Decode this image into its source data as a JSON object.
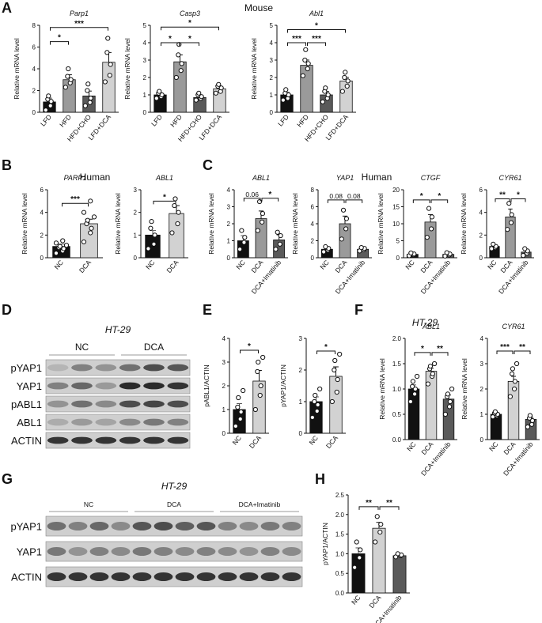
{
  "labels": {
    "mouse": "Mouse",
    "humanB": "Human",
    "humanC": "Human",
    "ht29": "HT-29"
  },
  "colors": {
    "black": "#111111",
    "dark": "#5a5a5a",
    "mid": "#9a9a9a",
    "light": "#d2d2d2"
  },
  "chart_data": [
    {
      "id": "A1",
      "type": "bar",
      "panel": "A",
      "title": "Parp1",
      "ylabel": "Relative mRNA level",
      "ylim": [
        0,
        8
      ],
      "yticks": [
        0,
        2,
        4,
        6,
        8
      ],
      "categories": [
        "LFD",
        "HFD",
        "HFD+CHO",
        "LFD+DCA"
      ],
      "values": [
        0.95,
        3.0,
        1.5,
        4.6
      ],
      "errors": [
        0.35,
        0.45,
        0.45,
        0.9
      ],
      "colors": [
        "#111111",
        "#9a9a9a",
        "#5a5a5a",
        "#d2d2d2"
      ],
      "points": [
        [
          0.2,
          0.6,
          1.0,
          1.2,
          1.5
        ],
        [
          2.3,
          2.7,
          3.0,
          3.3,
          4.0
        ],
        [
          0.6,
          0.9,
          1.3,
          2.0,
          2.6
        ],
        [
          2.8,
          3.4,
          4.4,
          5.5,
          6.8
        ]
      ],
      "sig": [
        {
          "a": 0,
          "b": 1,
          "y": 6.5,
          "label": "*"
        },
        {
          "a": 0,
          "b": 3,
          "y": 7.8,
          "label": "***"
        }
      ]
    },
    {
      "id": "A2",
      "type": "bar",
      "panel": "A",
      "title": "Casp3",
      "ylabel": "Relative mRNA level",
      "ylim": [
        0,
        5
      ],
      "yticks": [
        0,
        1,
        2,
        3,
        4,
        5
      ],
      "categories": [
        "LFD",
        "HFD",
        "HFD+CHO",
        "LFD+DCA"
      ],
      "values": [
        1.0,
        2.9,
        0.85,
        1.35
      ],
      "errors": [
        0.1,
        0.4,
        0.1,
        0.12
      ],
      "colors": [
        "#111111",
        "#9a9a9a",
        "#5a5a5a",
        "#d2d2d2"
      ],
      "points": [
        [
          0.8,
          0.9,
          1.0,
          1.1,
          1.2
        ],
        [
          2.0,
          2.4,
          2.8,
          3.3,
          3.9
        ],
        [
          0.7,
          0.8,
          0.9,
          1.0,
          1.1
        ],
        [
          1.1,
          1.2,
          1.4,
          1.5,
          1.6
        ]
      ],
      "sig": [
        {
          "a": 0,
          "b": 1,
          "y": 4.0,
          "label": "*"
        },
        {
          "a": 1,
          "b": 2,
          "y": 4.0,
          "label": "*"
        },
        {
          "a": 0,
          "b": 3,
          "y": 4.9,
          "label": "*"
        }
      ]
    },
    {
      "id": "A3",
      "type": "bar",
      "panel": "A",
      "title": "Abl1",
      "ylabel": "Relative mRNA level",
      "ylim": [
        0,
        5
      ],
      "yticks": [
        0,
        1,
        2,
        3,
        4,
        5
      ],
      "categories": [
        "LFD",
        "HFD",
        "HFD+CHO",
        "LFD+DCA"
      ],
      "values": [
        1.0,
        2.7,
        1.0,
        1.8
      ],
      "errors": [
        0.15,
        0.3,
        0.2,
        0.2
      ],
      "colors": [
        "#111111",
        "#9a9a9a",
        "#5a5a5a",
        "#d2d2d2"
      ],
      "points": [
        [
          0.7,
          0.8,
          1.0,
          1.1,
          1.3
        ],
        [
          2.1,
          2.5,
          2.8,
          3.0,
          3.6
        ],
        [
          0.6,
          0.8,
          1.0,
          1.2,
          1.4
        ],
        [
          1.2,
          1.5,
          1.8,
          2.0,
          2.3
        ]
      ],
      "sig": [
        {
          "a": 0,
          "b": 1,
          "y": 4.0,
          "label": "***"
        },
        {
          "a": 1,
          "b": 2,
          "y": 4.0,
          "label": "***"
        },
        {
          "a": 0,
          "b": 3,
          "y": 4.75,
          "label": "*"
        }
      ]
    },
    {
      "id": "B1",
      "type": "bar",
      "panel": "B",
      "title": "PARP1",
      "ylabel": "Relative mRNA level",
      "ylim": [
        0,
        6
      ],
      "yticks": [
        0,
        2,
        4,
        6
      ],
      "categories": [
        "NC",
        "DCA"
      ],
      "values": [
        1.0,
        3.0
      ],
      "errors": [
        0.2,
        0.4
      ],
      "colors": [
        "#111111",
        "#d2d2d2"
      ],
      "points": [
        [
          0.4,
          0.6,
          0.8,
          0.9,
          1.0,
          1.1,
          1.3,
          1.5
        ],
        [
          1.4,
          2.2,
          2.6,
          3.0,
          3.3,
          3.6,
          4.0,
          5.0
        ]
      ],
      "sig": [
        {
          "a": 0,
          "b": 1,
          "y": 4.8,
          "label": "***"
        }
      ]
    },
    {
      "id": "B2",
      "type": "bar",
      "panel": "B",
      "title": "ABL1",
      "ylabel": "Relative mRNA level",
      "ylim": [
        0,
        3
      ],
      "yticks": [
        0,
        1,
        2,
        3
      ],
      "categories": [
        "NC",
        "DCA"
      ],
      "values": [
        1.0,
        1.95
      ],
      "errors": [
        0.2,
        0.35
      ],
      "colors": [
        "#111111",
        "#d2d2d2"
      ],
      "points": [
        [
          0.4,
          0.6,
          1.0,
          1.3,
          1.6
        ],
        [
          1.1,
          1.5,
          2.0,
          2.3,
          2.6
        ]
      ],
      "sig": [
        {
          "a": 0,
          "b": 1,
          "y": 2.5,
          "label": "*"
        }
      ]
    },
    {
      "id": "C1",
      "type": "bar",
      "panel": "C",
      "title": "ABL1",
      "ylabel": "Relative mRNA level",
      "ylim": [
        0,
        4
      ],
      "yticks": [
        0,
        1,
        2,
        3,
        4
      ],
      "categories": [
        "NC",
        "DCA",
        "DCA+Imatinib"
      ],
      "values": [
        1.0,
        2.3,
        1.05
      ],
      "errors": [
        0.3,
        0.45,
        0.3
      ],
      "colors": [
        "#111111",
        "#9a9a9a",
        "#5a5a5a"
      ],
      "points": [
        [
          0.5,
          0.9,
          1.2,
          1.6
        ],
        [
          1.6,
          2.1,
          2.6,
          3.3
        ],
        [
          0.5,
          0.8,
          1.3,
          1.5
        ]
      ],
      "sig": [
        {
          "a": 0,
          "b": 1,
          "y": 3.5,
          "label": "0.06"
        },
        {
          "a": 1,
          "b": 2,
          "y": 3.5,
          "label": "*"
        }
      ]
    },
    {
      "id": "C2",
      "type": "bar",
      "panel": "C",
      "title": "YAP1",
      "ylabel": "Relative mRNA level",
      "ylim": [
        0,
        8
      ],
      "yticks": [
        0,
        2,
        4,
        6,
        8
      ],
      "categories": [
        "NC",
        "DCA",
        "DCA+Imatinib"
      ],
      "values": [
        1.0,
        4.0,
        1.0
      ],
      "errors": [
        0.2,
        0.9,
        0.15
      ],
      "colors": [
        "#111111",
        "#9a9a9a",
        "#5a5a5a"
      ],
      "points": [
        [
          0.7,
          0.9,
          1.1,
          1.3
        ],
        [
          2.2,
          3.4,
          4.6,
          5.6
        ],
        [
          0.8,
          0.95,
          1.1,
          1.2
        ]
      ],
      "sig": [
        {
          "a": 0,
          "b": 1,
          "y": 6.8,
          "label": "0.08"
        },
        {
          "a": 1,
          "b": 2,
          "y": 6.8,
          "label": "0.08"
        }
      ]
    },
    {
      "id": "C3",
      "type": "bar",
      "panel": "C",
      "title": "CTGF",
      "ylabel": "Relative mRNA level",
      "ylim": [
        0,
        20
      ],
      "yticks": [
        0,
        5,
        10,
        15,
        20
      ],
      "categories": [
        "NC",
        "DCA",
        "DCA+Imatinib"
      ],
      "values": [
        1.0,
        10.5,
        1.0
      ],
      "errors": [
        0.3,
        2.2,
        0.3
      ],
      "colors": [
        "#111111",
        "#9a9a9a",
        "#5a5a5a"
      ],
      "points": [
        [
          0.6,
          0.9,
          1.1,
          1.4
        ],
        [
          6.0,
          8.5,
          12.0,
          14.5
        ],
        [
          0.5,
          0.8,
          1.1,
          1.5
        ]
      ],
      "sig": [
        {
          "a": 0,
          "b": 1,
          "y": 17.0,
          "label": "*"
        },
        {
          "a": 1,
          "b": 2,
          "y": 17.0,
          "label": "*"
        }
      ]
    },
    {
      "id": "C4",
      "type": "bar",
      "panel": "C",
      "title": "CYR61",
      "ylabel": "Relative mRNA level",
      "ylim": [
        0,
        6
      ],
      "yticks": [
        0,
        2,
        4,
        6
      ],
      "categories": [
        "NC",
        "DCA",
        "DCA+Imatinib"
      ],
      "values": [
        1.0,
        3.6,
        0.5
      ],
      "errors": [
        0.1,
        0.7,
        0.2
      ],
      "colors": [
        "#111111",
        "#9a9a9a",
        "#5a5a5a"
      ],
      "points": [
        [
          0.8,
          0.9,
          1.0,
          1.2
        ],
        [
          2.5,
          3.1,
          3.8,
          4.8
        ],
        [
          0.2,
          0.4,
          0.6,
          0.8
        ]
      ],
      "sig": [
        {
          "a": 0,
          "b": 1,
          "y": 5.2,
          "label": "**"
        },
        {
          "a": 1,
          "b": 2,
          "y": 5.2,
          "label": "*"
        }
      ]
    },
    {
      "id": "E1",
      "type": "bar",
      "panel": "E",
      "title": "",
      "ylabel": "pABL1/ACTIN",
      "ylim": [
        0,
        4
      ],
      "yticks": [
        0,
        1,
        2,
        3,
        4
      ],
      "categories": [
        "NC",
        "DCA"
      ],
      "values": [
        1.0,
        2.2
      ],
      "errors": [
        0.25,
        0.45
      ],
      "colors": [
        "#111111",
        "#d2d2d2"
      ],
      "points": [
        [
          0.3,
          0.6,
          0.9,
          1.1,
          1.5,
          1.8
        ],
        [
          1.0,
          1.6,
          2.0,
          2.6,
          3.0,
          3.2
        ]
      ],
      "sig": [
        {
          "a": 0,
          "b": 1,
          "y": 3.5,
          "label": "*"
        }
      ]
    },
    {
      "id": "E2",
      "type": "bar",
      "panel": "E",
      "title": "",
      "ylabel": "pYAP1/ACTIN",
      "ylim": [
        0,
        3
      ],
      "yticks": [
        0,
        1,
        2,
        3
      ],
      "categories": [
        "NC",
        "DCA"
      ],
      "values": [
        1.0,
        1.8
      ],
      "errors": [
        0.15,
        0.3
      ],
      "colors": [
        "#111111",
        "#d2d2d2"
      ],
      "points": [
        [
          0.5,
          0.7,
          0.9,
          1.0,
          1.2,
          1.4
        ],
        [
          1.0,
          1.3,
          1.7,
          2.0,
          2.3,
          2.5
        ]
      ],
      "sig": [
        {
          "a": 0,
          "b": 1,
          "y": 2.6,
          "label": "*"
        }
      ]
    },
    {
      "id": "F1",
      "type": "bar",
      "panel": "F",
      "title": "ABL1",
      "ylabel": "Relative mRNA level",
      "ylim": [
        0,
        2
      ],
      "yticks": [
        0.0,
        0.5,
        1.0,
        1.5,
        2.0
      ],
      "categories": [
        "NC",
        "DCA",
        "DCA+Imatinib"
      ],
      "values": [
        1.0,
        1.35,
        0.8
      ],
      "errors": [
        0.08,
        0.06,
        0.08
      ],
      "colors": [
        "#111111",
        "#d2d2d2",
        "#5a5a5a"
      ],
      "points": [
        [
          0.75,
          0.9,
          1.0,
          1.05,
          1.15,
          1.25
        ],
        [
          1.1,
          1.25,
          1.3,
          1.4,
          1.45,
          1.5
        ],
        [
          0.5,
          0.65,
          0.75,
          0.85,
          0.9,
          1.0
        ]
      ],
      "sig": [
        {
          "a": 0,
          "b": 1,
          "y": 1.72,
          "label": "*"
        },
        {
          "a": 1,
          "b": 2,
          "y": 1.72,
          "label": "**"
        }
      ]
    },
    {
      "id": "F2",
      "type": "bar",
      "panel": "F",
      "title": "CYR61",
      "ylabel": "Relative mRNA level",
      "ylim": [
        0,
        4
      ],
      "yticks": [
        0,
        1,
        2,
        3,
        4
      ],
      "categories": [
        "NC",
        "DCA",
        "DCA+Imatinib"
      ],
      "values": [
        1.0,
        2.3,
        0.8
      ],
      "errors": [
        0.05,
        0.2,
        0.08
      ],
      "colors": [
        "#111111",
        "#d2d2d2",
        "#5a5a5a"
      ],
      "points": [
        [
          0.9,
          0.95,
          1.0,
          1.05,
          1.1
        ],
        [
          1.7,
          2.0,
          2.3,
          2.6,
          2.8,
          3.0
        ],
        [
          0.5,
          0.6,
          0.75,
          0.85,
          0.95
        ]
      ],
      "sig": [
        {
          "a": 0,
          "b": 1,
          "y": 3.5,
          "label": "***"
        },
        {
          "a": 1,
          "b": 2,
          "y": 3.5,
          "label": "**"
        }
      ]
    },
    {
      "id": "H1",
      "type": "bar",
      "panel": "H",
      "title": "",
      "ylabel": "pYAP1/ACTIN",
      "ylim": [
        0,
        2.5
      ],
      "yticks": [
        0.0,
        0.5,
        1.0,
        1.5,
        2.0,
        2.5
      ],
      "categories": [
        "NC",
        "DCA",
        "DCA+Imatinib"
      ],
      "values": [
        1.0,
        1.65,
        0.95
      ],
      "errors": [
        0.15,
        0.15,
        0.03
      ],
      "colors": [
        "#111111",
        "#d2d2d2",
        "#5a5a5a"
      ],
      "points": [
        [
          0.65,
          0.9,
          1.1,
          1.3
        ],
        [
          1.3,
          1.55,
          1.75,
          1.95
        ],
        [
          0.92,
          0.95,
          0.97,
          1.0
        ]
      ],
      "sig": [
        {
          "a": 0,
          "b": 1,
          "y": 2.2,
          "label": "**"
        },
        {
          "a": 1,
          "b": 2,
          "y": 2.2,
          "label": "**"
        }
      ]
    }
  ],
  "blots": {
    "D": {
      "cell_line": "HT-29",
      "groups": [
        "NC",
        "DCA"
      ],
      "lanes": 6,
      "rows": [
        {
          "label": "pYAP1"
        },
        {
          "label": "YAP1"
        },
        {
          "label": "pABL1"
        },
        {
          "label": "ABL1"
        },
        {
          "label": "ACTIN"
        }
      ]
    },
    "G": {
      "cell_line": "HT-29",
      "groups": [
        "NC",
        "DCA",
        "DCA+Imatinib"
      ],
      "lanes": 12,
      "rows": [
        {
          "label": "pYAP1"
        },
        {
          "label": "YAP1"
        },
        {
          "label": "ACTIN"
        }
      ]
    }
  }
}
